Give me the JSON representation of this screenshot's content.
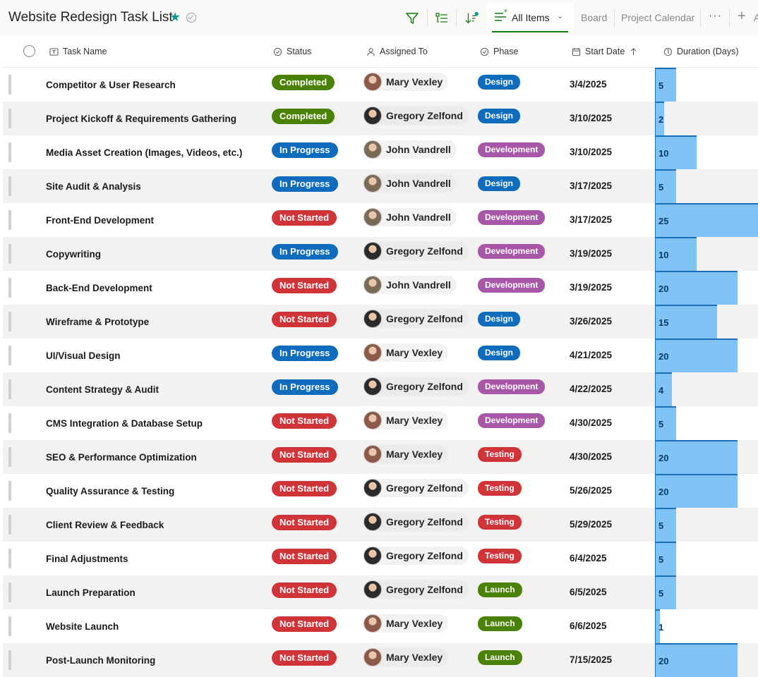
{
  "header": {
    "title": "Website Redesign Task List",
    "views": {
      "active": "All Items",
      "board": "Board",
      "calendar": "Project Calendar",
      "more": "···",
      "add": "+",
      "add_suffix": "A"
    }
  },
  "columns": {
    "task": "Task Name",
    "status": "Status",
    "assigned": "Assigned To",
    "phase": "Phase",
    "start": "Start Date",
    "duration": "Duration (Days)"
  },
  "colors": {
    "Completed": "#498205",
    "In Progress": "#0f6cbd",
    "Not Started": "#d13438",
    "Design": "#0f6cbd",
    "Development": "#a857a8",
    "Testing": "#d13438",
    "Launch": "#498205",
    "Mary Vexley": "#8c5a4a",
    "Gregory Zelfond": "#2b2b2b",
    "John Vandrell": "#7a6a58"
  },
  "rows": [
    {
      "task": "Competitor & User Research",
      "status": "Completed",
      "person": "Mary Vexley",
      "phase": "Design",
      "start": "3/4/2025",
      "duration": 5
    },
    {
      "task": "Project Kickoff & Requirements Gathering",
      "status": "Completed",
      "person": "Gregory Zelfond",
      "phase": "Design",
      "start": "3/10/2025",
      "duration": 2
    },
    {
      "task": "Media Asset Creation (Images, Videos, etc.)",
      "status": "In Progress",
      "person": "John Vandrell",
      "phase": "Development",
      "start": "3/10/2025",
      "duration": 10
    },
    {
      "task": "Site Audit & Analysis",
      "status": "In Progress",
      "person": "John Vandrell",
      "phase": "Design",
      "start": "3/17/2025",
      "duration": 5
    },
    {
      "task": "Front-End Development",
      "status": "Not Started",
      "person": "John Vandrell",
      "phase": "Development",
      "start": "3/17/2025",
      "duration": 25
    },
    {
      "task": "Copywriting",
      "status": "In Progress",
      "person": "Gregory Zelfond",
      "phase": "Development",
      "start": "3/19/2025",
      "duration": 10
    },
    {
      "task": "Back-End Development",
      "status": "Not Started",
      "person": "John Vandrell",
      "phase": "Development",
      "start": "3/19/2025",
      "duration": 20
    },
    {
      "task": "Wireframe & Prototype",
      "status": "Not Started",
      "person": "Gregory Zelfond",
      "phase": "Design",
      "start": "3/26/2025",
      "duration": 15
    },
    {
      "task": "UI/Visual Design",
      "status": "In Progress",
      "person": "Mary Vexley",
      "phase": "Design",
      "start": "4/21/2025",
      "duration": 20
    },
    {
      "task": "Content Strategy & Audit",
      "status": "In Progress",
      "person": "Gregory Zelfond",
      "phase": "Development",
      "start": "4/22/2025",
      "duration": 4
    },
    {
      "task": "CMS Integration & Database Setup",
      "status": "Not Started",
      "person": "Mary Vexley",
      "phase": "Development",
      "start": "4/30/2025",
      "duration": 5
    },
    {
      "task": "SEO & Performance Optimization",
      "status": "Not Started",
      "person": "Mary Vexley",
      "phase": "Testing",
      "start": "4/30/2025",
      "duration": 20
    },
    {
      "task": "Quality Assurance & Testing",
      "status": "Not Started",
      "person": "Gregory Zelfond",
      "phase": "Testing",
      "start": "5/26/2025",
      "duration": 20
    },
    {
      "task": "Client Review & Feedback",
      "status": "Not Started",
      "person": "Gregory Zelfond",
      "phase": "Testing",
      "start": "5/29/2025",
      "duration": 5
    },
    {
      "task": "Final Adjustments",
      "status": "Not Started",
      "person": "Gregory Zelfond",
      "phase": "Testing",
      "start": "6/4/2025",
      "duration": 5
    },
    {
      "task": "Launch Preparation",
      "status": "Not Started",
      "person": "Gregory Zelfond",
      "phase": "Launch",
      "start": "6/5/2025",
      "duration": 5
    },
    {
      "task": "Website Launch",
      "status": "Not Started",
      "person": "Mary Vexley",
      "phase": "Launch",
      "start": "6/6/2025",
      "duration": 1
    },
    {
      "task": "Post-Launch Monitoring",
      "status": "Not Started",
      "person": "Mary Vexley",
      "phase": "Launch",
      "start": "7/15/2025",
      "duration": 20
    }
  ]
}
